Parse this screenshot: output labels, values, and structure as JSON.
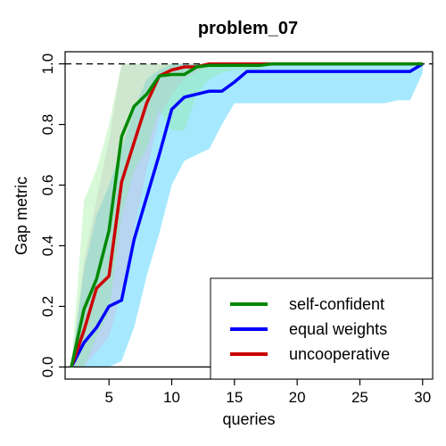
{
  "chart_data": {
    "type": "line",
    "title": "problem_07",
    "xlabel": "queries",
    "ylabel": "Gap metric",
    "xlim": [
      1.5,
      30.8
    ],
    "ylim": [
      -0.04,
      1.04
    ],
    "xticks": [
      5,
      10,
      15,
      20,
      25,
      30
    ],
    "yticks": [
      0.0,
      0.2,
      0.4,
      0.6,
      0.8,
      1.0
    ],
    "ytick_labels": [
      "0.0",
      "0.2",
      "0.4",
      "0.6",
      "0.8",
      "1.0"
    ],
    "reference_lines": [
      {
        "y": 1.0,
        "style": "dashed",
        "color": "#000000"
      },
      {
        "y": 0.0,
        "style": "solid",
        "color": "#000000"
      }
    ],
    "legend_position": "bottom-right",
    "series": [
      {
        "name": "equal weights",
        "color": "#0000ff",
        "band_color": "#00bfff",
        "x": [
          2,
          3,
          4,
          5,
          6,
          7,
          8,
          9,
          10,
          11,
          12,
          13,
          14,
          15,
          16,
          17,
          18,
          19,
          20,
          21,
          22,
          23,
          24,
          25,
          26,
          27,
          28,
          29,
          30
        ],
        "y": [
          0.0,
          0.08,
          0.13,
          0.2,
          0.22,
          0.42,
          0.56,
          0.7,
          0.85,
          0.89,
          0.9,
          0.91,
          0.91,
          0.94,
          0.975,
          0.975,
          0.975,
          0.975,
          0.975,
          0.975,
          0.975,
          0.975,
          0.975,
          0.975,
          0.975,
          0.975,
          0.975,
          0.975,
          1.0
        ],
        "lower": [
          0.0,
          0.0,
          0.0,
          0.0,
          0.02,
          0.13,
          0.3,
          0.44,
          0.6,
          0.68,
          0.7,
          0.72,
          0.8,
          0.87,
          0.87,
          0.87,
          0.87,
          0.87,
          0.87,
          0.87,
          0.87,
          0.87,
          0.87,
          0.87,
          0.87,
          0.87,
          0.88,
          0.88,
          0.97
        ],
        "upper": [
          0.0,
          0.32,
          0.5,
          0.6,
          0.72,
          0.85,
          0.95,
          0.98,
          1.0,
          1.0,
          1.0,
          1.0,
          1.0,
          1.0,
          1.0,
          1.0,
          1.0,
          1.0,
          1.0,
          1.0,
          1.0,
          1.0,
          1.0,
          1.0,
          1.0,
          1.0,
          1.0,
          1.0,
          1.0
        ]
      },
      {
        "name": "uncooperative",
        "color": "#cc0000",
        "band_color": "#d8b0d8",
        "x": [
          2,
          3,
          4,
          5,
          6,
          7,
          8,
          9,
          10,
          11,
          12,
          13,
          14,
          15,
          16,
          17,
          18,
          19,
          20,
          21,
          22,
          23,
          24,
          25,
          26,
          27,
          28,
          29,
          30
        ],
        "y": [
          0.0,
          0.12,
          0.26,
          0.3,
          0.61,
          0.74,
          0.87,
          0.96,
          0.98,
          0.99,
          0.99,
          1.0,
          1.0,
          1.0,
          1.0,
          1.0,
          1.0,
          1.0,
          1.0,
          1.0,
          1.0,
          1.0,
          1.0,
          1.0,
          1.0,
          1.0,
          1.0,
          1.0,
          1.0
        ],
        "lower": [
          0.0,
          0.0,
          0.05,
          0.1,
          0.25,
          0.45,
          0.65,
          0.82,
          0.9,
          0.95,
          0.97,
          1.0,
          1.0,
          1.0,
          1.0,
          1.0,
          1.0,
          1.0,
          1.0,
          1.0,
          1.0,
          1.0,
          1.0,
          1.0,
          1.0,
          1.0,
          1.0,
          1.0,
          1.0
        ],
        "upper": [
          0.0,
          0.35,
          0.55,
          0.75,
          1.0,
          1.0,
          1.0,
          1.0,
          1.0,
          1.0,
          1.0,
          1.0,
          1.0,
          1.0,
          1.0,
          1.0,
          1.0,
          1.0,
          1.0,
          1.0,
          1.0,
          1.0,
          1.0,
          1.0,
          1.0,
          1.0,
          1.0,
          1.0,
          1.0
        ]
      },
      {
        "name": "self-confident",
        "color": "#008800",
        "band_color": "#90ee90",
        "x": [
          2,
          3,
          4,
          5,
          6,
          7,
          8,
          9,
          10,
          11,
          12,
          13,
          14,
          15,
          16,
          17,
          18,
          19,
          20,
          21,
          22,
          23,
          24,
          25,
          26,
          27,
          28,
          29,
          30
        ],
        "y": [
          0.0,
          0.19,
          0.29,
          0.45,
          0.76,
          0.86,
          0.9,
          0.96,
          0.965,
          0.965,
          0.99,
          0.995,
          0.995,
          0.995,
          0.995,
          0.995,
          1.0,
          1.0,
          1.0,
          1.0,
          1.0,
          1.0,
          1.0,
          1.0,
          1.0,
          1.0,
          1.0,
          1.0,
          1.0
        ],
        "lower": [
          0.0,
          0.0,
          0.1,
          0.18,
          0.5,
          0.65,
          0.72,
          0.85,
          0.78,
          0.78,
          0.9,
          0.95,
          0.97,
          0.98,
          0.98,
          0.98,
          1.0,
          1.0,
          1.0,
          1.0,
          1.0,
          1.0,
          1.0,
          1.0,
          1.0,
          1.0,
          1.0,
          1.0,
          1.0
        ],
        "upper": [
          0.0,
          0.55,
          0.65,
          0.8,
          1.0,
          1.0,
          1.0,
          1.0,
          1.0,
          1.0,
          1.0,
          1.0,
          1.0,
          1.0,
          1.0,
          1.0,
          1.0,
          1.0,
          1.0,
          1.0,
          1.0,
          1.0,
          1.0,
          1.0,
          1.0,
          1.0,
          1.0,
          1.0,
          1.0
        ]
      }
    ],
    "legend_order": [
      "self-confident",
      "equal weights",
      "uncooperative"
    ]
  }
}
